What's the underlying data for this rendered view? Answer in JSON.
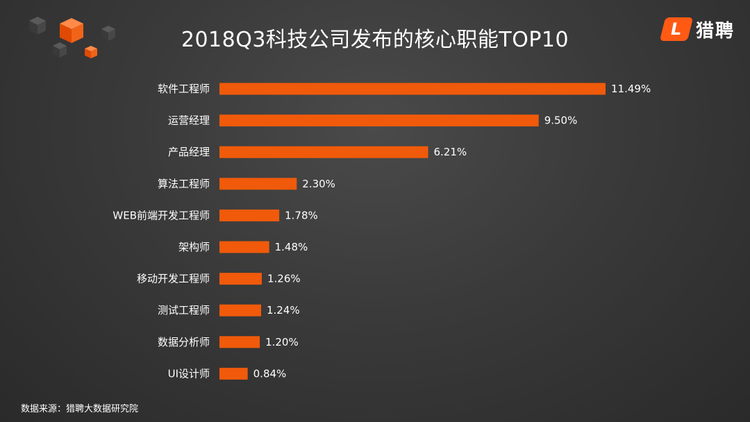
{
  "title": "2018Q3科技公司发布的核心职能TOP10",
  "logo": {
    "mark": "L",
    "text": "猎聘"
  },
  "source": "数据来源：猎聘大数据研究院",
  "colors": {
    "bar": "#f05a0a",
    "accent": "#ff5a14",
    "text": "#ffffff"
  },
  "chart_data": {
    "type": "bar",
    "orientation": "horizontal",
    "title": "2018Q3科技公司发布的核心职能TOP10",
    "categories": [
      "软件工程师",
      "运营经理",
      "产品经理",
      "算法工程师",
      "WEB前端开发工程师",
      "架构师",
      "移动开发工程师",
      "测试工程师",
      "数据分析师",
      "UI设计师"
    ],
    "values": [
      11.49,
      9.5,
      6.21,
      2.3,
      1.78,
      1.48,
      1.26,
      1.24,
      1.2,
      0.84
    ],
    "labels": [
      "11.49%",
      "9.50%",
      "6.21%",
      "2.30%",
      "1.78%",
      "1.48%",
      "1.26%",
      "1.24%",
      "1.20%",
      "0.84%"
    ],
    "unit": "%",
    "grid": false,
    "legend": "none"
  }
}
